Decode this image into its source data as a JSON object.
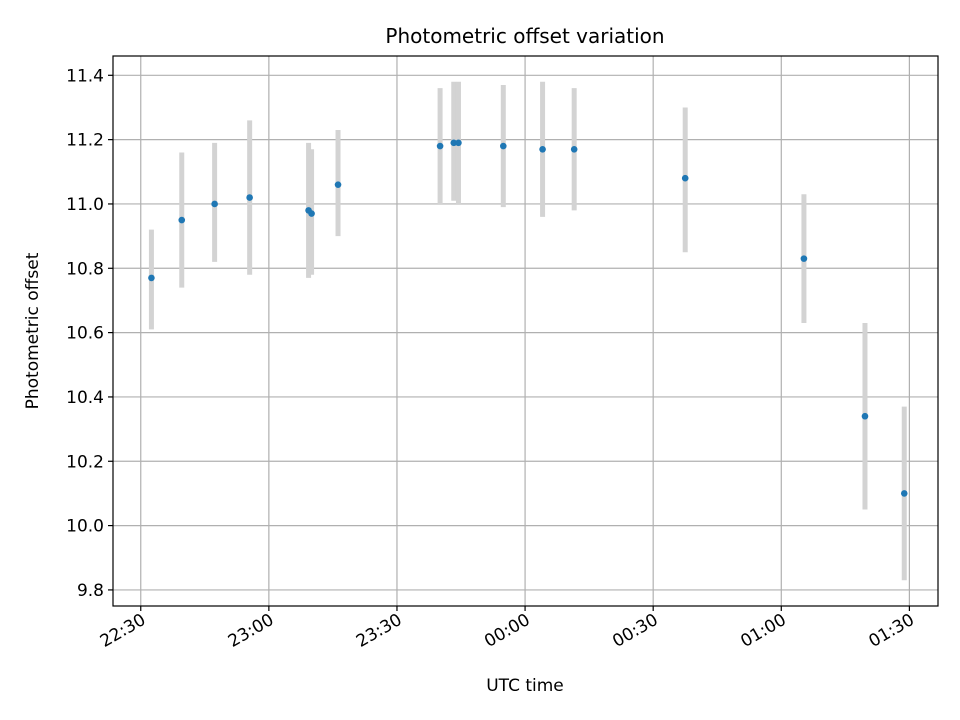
{
  "chart_data": {
    "type": "scatter",
    "title": "Photometric offset variation",
    "xlabel": "UTC time",
    "ylabel": "Photometric offset",
    "x_ticks": [
      {
        "value": 90,
        "label": "22:30"
      },
      {
        "value": 120,
        "label": "23:00"
      },
      {
        "value": 150,
        "label": "23:30"
      },
      {
        "value": 180,
        "label": "00:00"
      },
      {
        "value": 210,
        "label": "00:30"
      },
      {
        "value": 240,
        "label": "01:00"
      },
      {
        "value": 270,
        "label": "01:30"
      }
    ],
    "y_ticks": [
      9.8,
      10.0,
      10.2,
      10.4,
      10.6,
      10.8,
      11.0,
      11.2,
      11.4
    ],
    "xlim": [
      83.5,
      276.7
    ],
    "ylim": [
      9.75,
      11.46
    ],
    "grid": true,
    "colors": {
      "points": "#1f77b4",
      "errorbars": "#d3d3d3",
      "grid": "#b0b0b0"
    },
    "series": [
      {
        "points": [
          {
            "x": 92.5,
            "y": 10.77,
            "lo": 10.61,
            "hi": 10.92
          },
          {
            "x": 99.6,
            "y": 10.95,
            "lo": 10.74,
            "hi": 11.16
          },
          {
            "x": 107.3,
            "y": 11.0,
            "lo": 10.82,
            "hi": 11.19
          },
          {
            "x": 115.5,
            "y": 11.02,
            "lo": 10.78,
            "hi": 11.26
          },
          {
            "x": 129.3,
            "y": 10.98,
            "lo": 10.77,
            "hi": 11.19
          },
          {
            "x": 130.0,
            "y": 10.97,
            "lo": 10.78,
            "hi": 11.17
          },
          {
            "x": 136.2,
            "y": 11.06,
            "lo": 10.9,
            "hi": 11.23
          },
          {
            "x": 160.1,
            "y": 11.18,
            "lo": 11.0,
            "hi": 11.36
          },
          {
            "x": 163.3,
            "y": 11.19,
            "lo": 11.01,
            "hi": 11.38
          },
          {
            "x": 164.4,
            "y": 11.19,
            "lo": 11.0,
            "hi": 11.38
          },
          {
            "x": 174.9,
            "y": 11.18,
            "lo": 10.99,
            "hi": 11.37
          },
          {
            "x": 184.1,
            "y": 11.17,
            "lo": 10.96,
            "hi": 11.38
          },
          {
            "x": 191.5,
            "y": 11.17,
            "lo": 10.98,
            "hi": 11.36
          },
          {
            "x": 217.5,
            "y": 11.08,
            "lo": 10.85,
            "hi": 11.3
          },
          {
            "x": 245.3,
            "y": 10.83,
            "lo": 10.63,
            "hi": 11.03
          },
          {
            "x": 259.6,
            "y": 10.34,
            "lo": 10.05,
            "hi": 10.63
          },
          {
            "x": 268.8,
            "y": 10.1,
            "lo": 9.83,
            "hi": 10.37
          }
        ]
      }
    ]
  }
}
